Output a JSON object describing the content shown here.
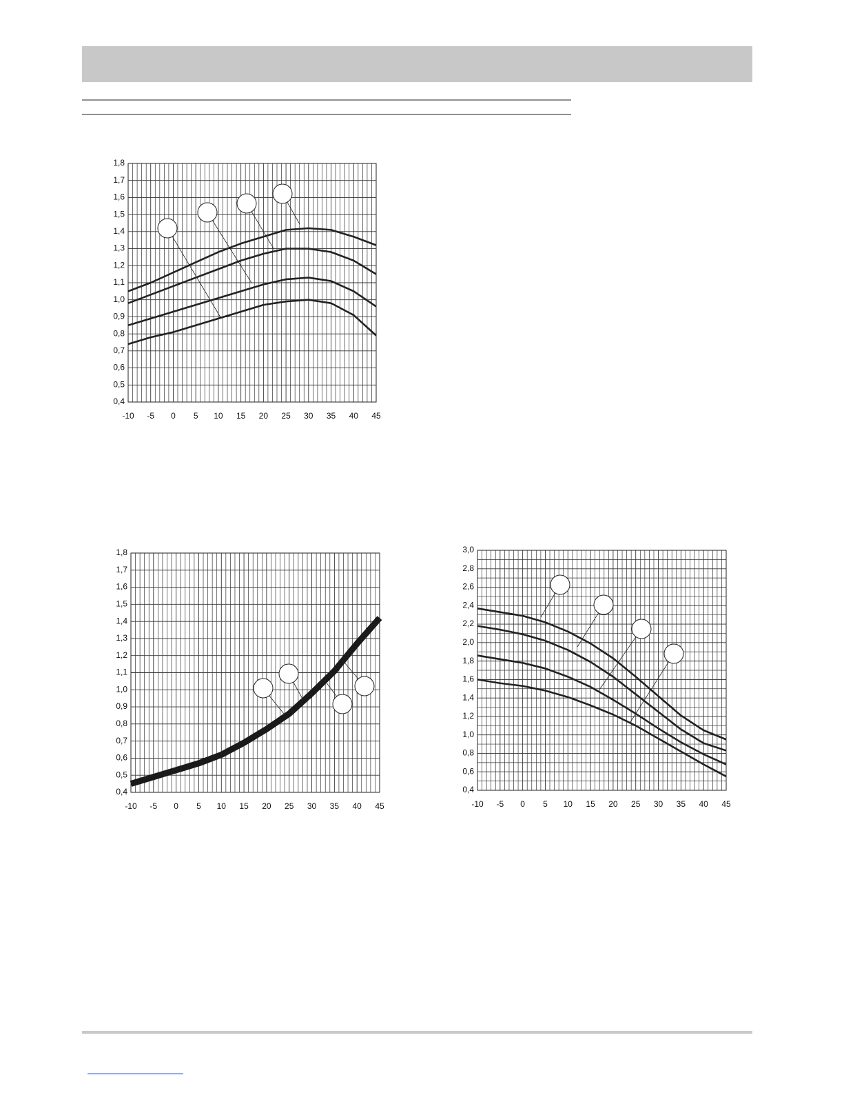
{
  "chart_data": [
    {
      "type": "line",
      "x": [
        -10,
        -5,
        0,
        5,
        10,
        15,
        20,
        25,
        30,
        35,
        40,
        45
      ],
      "xlim": [
        -10,
        45
      ],
      "xticks": [
        -10,
        -5,
        0,
        5,
        10,
        15,
        20,
        25,
        30,
        35,
        40,
        45
      ],
      "ylim": [
        0.4,
        1.8
      ],
      "yticks": [
        {
          "value": 0.4,
          "label": "0,4"
        },
        {
          "value": 0.5,
          "label": "0,5"
        },
        {
          "value": 0.6,
          "label": "0,6"
        },
        {
          "value": 0.7,
          "label": "0,7"
        },
        {
          "value": 0.8,
          "label": "0,8"
        },
        {
          "value": 0.9,
          "label": "0,9"
        },
        {
          "value": 1.0,
          "label": "1,0"
        },
        {
          "value": 1.1,
          "label": "1,1"
        },
        {
          "value": 1.2,
          "label": "1,2"
        },
        {
          "value": 1.3,
          "label": "1,3"
        },
        {
          "value": 1.4,
          "label": "1,4"
        },
        {
          "value": 1.5,
          "label": "1,5"
        },
        {
          "value": 1.6,
          "label": "1,6"
        },
        {
          "value": 1.7,
          "label": "1,7"
        },
        {
          "value": 1.8,
          "label": "1,8"
        }
      ],
      "grid": true,
      "x_minor_divisions": 5,
      "y_minor_divisions": 1,
      "series": [
        {
          "color": "#222222",
          "values": [
            1.05,
            1.1,
            1.16,
            1.22,
            1.28,
            1.33,
            1.37,
            1.41,
            1.42,
            1.41,
            1.37,
            1.32
          ]
        },
        {
          "color": "#222222",
          "values": [
            0.98,
            1.03,
            1.08,
            1.13,
            1.18,
            1.23,
            1.27,
            1.3,
            1.3,
            1.28,
            1.23,
            1.15
          ]
        },
        {
          "color": "#222222",
          "values": [
            0.85,
            0.89,
            0.93,
            0.97,
            1.01,
            1.05,
            1.09,
            1.12,
            1.13,
            1.11,
            1.05,
            0.96
          ]
        },
        {
          "color": "#222222",
          "values": [
            0.74,
            0.78,
            0.81,
            0.85,
            0.89,
            0.93,
            0.97,
            0.99,
            1.0,
            0.98,
            0.91,
            0.79
          ]
        }
      ]
    },
    {
      "type": "line",
      "x": [
        -10,
        -5,
        0,
        5,
        10,
        15,
        20,
        25,
        30,
        35,
        40,
        45
      ],
      "xlim": [
        -10,
        45
      ],
      "xticks": [
        -10,
        -5,
        0,
        5,
        10,
        15,
        20,
        25,
        30,
        35,
        40,
        45
      ],
      "ylim": [
        0.4,
        1.8
      ],
      "yticks": [
        {
          "value": 0.4,
          "label": "0,4"
        },
        {
          "value": 0.5,
          "label": "0,5"
        },
        {
          "value": 0.6,
          "label": "0,6"
        },
        {
          "value": 0.7,
          "label": "0,7"
        },
        {
          "value": 0.8,
          "label": "0,8"
        },
        {
          "value": 0.9,
          "label": "0,9"
        },
        {
          "value": 1.0,
          "label": "1,0"
        },
        {
          "value": 1.1,
          "label": "1,1"
        },
        {
          "value": 1.2,
          "label": "1,2"
        },
        {
          "value": 1.3,
          "label": "1,3"
        },
        {
          "value": 1.4,
          "label": "1,4"
        },
        {
          "value": 1.5,
          "label": "1,5"
        },
        {
          "value": 1.6,
          "label": "1,6"
        },
        {
          "value": 1.7,
          "label": "1,7"
        },
        {
          "value": 1.8,
          "label": "1,8"
        }
      ],
      "grid": true,
      "x_minor_divisions": 5,
      "y_minor_divisions": 1,
      "series": [
        {
          "color": "#1a1a1a",
          "values": [
            0.45,
            0.49,
            0.53,
            0.57,
            0.62,
            0.69,
            0.77,
            0.86,
            0.98,
            1.11,
            1.27,
            1.42
          ]
        }
      ]
    },
    {
      "type": "line",
      "x": [
        -10,
        -5,
        0,
        5,
        10,
        15,
        20,
        25,
        30,
        35,
        40,
        45
      ],
      "xlim": [
        -10,
        45
      ],
      "xticks": [
        -10,
        -5,
        0,
        5,
        10,
        15,
        20,
        25,
        30,
        35,
        40,
        45
      ],
      "ylim": [
        0.4,
        3.0
      ],
      "yticks": [
        {
          "value": 0.4,
          "label": "0,4"
        },
        {
          "value": 0.6,
          "label": "0,6"
        },
        {
          "value": 0.8,
          "label": "0,8"
        },
        {
          "value": 1.0,
          "label": "1,0"
        },
        {
          "value": 1.2,
          "label": "1,2"
        },
        {
          "value": 1.4,
          "label": "1,4"
        },
        {
          "value": 1.6,
          "label": "1,6"
        },
        {
          "value": 1.8,
          "label": "1,8"
        },
        {
          "value": 2.0,
          "label": "2,0"
        },
        {
          "value": 2.2,
          "label": "2,2"
        },
        {
          "value": 2.4,
          "label": "2,4"
        },
        {
          "value": 2.6,
          "label": "2,6"
        },
        {
          "value": 2.8,
          "label": "2,8"
        },
        {
          "value": 3.0,
          "label": "3,0"
        }
      ],
      "grid": true,
      "x_minor_divisions": 5,
      "y_minor_divisions": 2,
      "series": [
        {
          "color": "#222222",
          "values": [
            2.37,
            2.33,
            2.29,
            2.22,
            2.12,
            1.99,
            1.83,
            1.63,
            1.42,
            1.21,
            1.05,
            0.95
          ]
        },
        {
          "color": "#222222",
          "values": [
            2.18,
            2.14,
            2.09,
            2.02,
            1.92,
            1.79,
            1.63,
            1.44,
            1.25,
            1.06,
            0.91,
            0.83
          ]
        },
        {
          "color": "#222222",
          "values": [
            1.86,
            1.82,
            1.78,
            1.72,
            1.63,
            1.52,
            1.38,
            1.23,
            1.07,
            0.92,
            0.79,
            0.68
          ]
        },
        {
          "color": "#222222",
          "values": [
            1.6,
            1.56,
            1.53,
            1.48,
            1.41,
            1.32,
            1.22,
            1.1,
            0.96,
            0.82,
            0.68,
            0.55
          ]
        }
      ]
    }
  ]
}
